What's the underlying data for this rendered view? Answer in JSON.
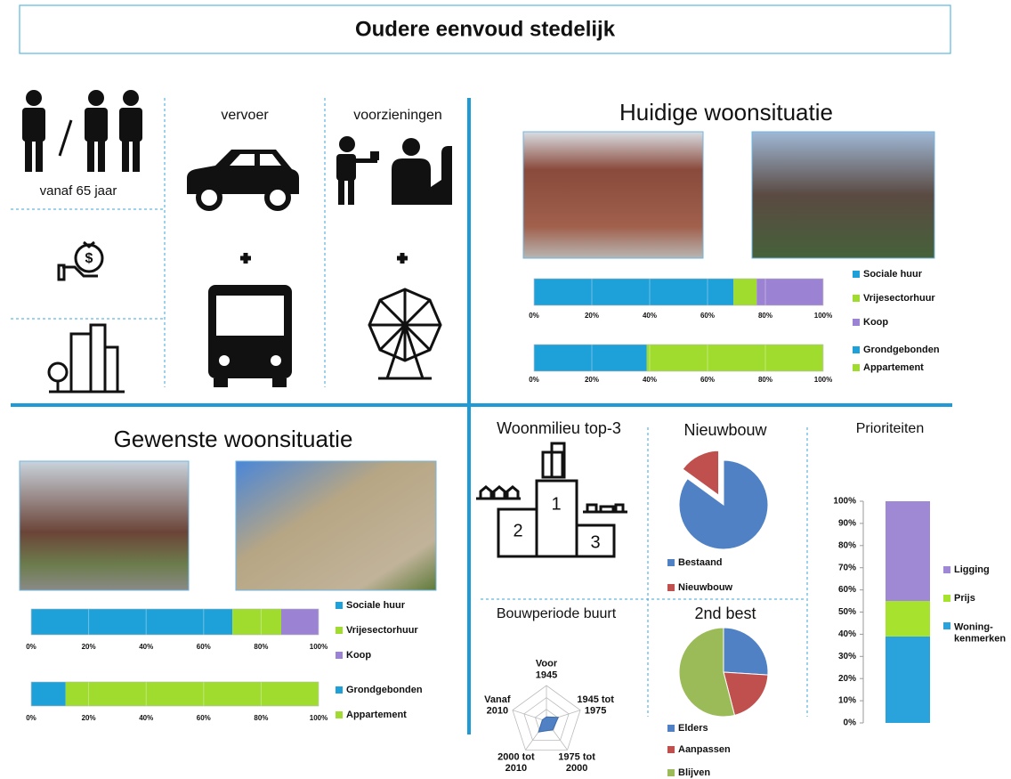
{
  "title": "Oudere eenvoud stedelijk",
  "profile": {
    "age": "vanaf 65 jaar",
    "transport": "vervoer",
    "facilities": "voorzieningen"
  },
  "sections": {
    "current": "Huidige woonsituatie",
    "desired": "Gewenste woonsituatie",
    "environment": "Woonmilieu top-3"
  },
  "podium": [
    "1",
    "2",
    "3"
  ],
  "chart_data": [
    {
      "type": "stacked-bar",
      "grid": true,
      "legend": "right",
      "xlim": [
        0,
        100
      ],
      "xticks": [
        {
          "value": 0,
          "label": "0%"
        },
        {
          "value": 20,
          "label": "20%"
        },
        {
          "value": 40,
          "label": "40%"
        },
        {
          "value": 60,
          "label": "60%"
        },
        {
          "value": 80,
          "label": "80%"
        },
        {
          "value": 100,
          "label": "100%"
        }
      ],
      "series": [
        {
          "name": "Sociale huur",
          "color": "#1ea0d9",
          "values": [
            69
          ]
        },
        {
          "name": "Vrijesectorhuur",
          "color": "#9fdc2e",
          "values": [
            8
          ]
        },
        {
          "name": "Koop",
          "color": "#9b82d3",
          "values": [
            23
          ]
        }
      ]
    },
    {
      "type": "stacked-bar",
      "grid": true,
      "legend": "right",
      "xlim": [
        0,
        100
      ],
      "xticks": [
        {
          "value": 0,
          "label": "0%"
        },
        {
          "value": 20,
          "label": "20%"
        },
        {
          "value": 40,
          "label": "40%"
        },
        {
          "value": 60,
          "label": "60%"
        },
        {
          "value": 80,
          "label": "80%"
        },
        {
          "value": 100,
          "label": "100%"
        }
      ],
      "series": [
        {
          "name": "Grondgebonden",
          "color": "#1ea0d9",
          "values": [
            39
          ]
        },
        {
          "name": "Appartement",
          "color": "#9fdc2e",
          "values": [
            61
          ]
        }
      ]
    },
    {
      "type": "stacked-bar",
      "grid": true,
      "legend": "right",
      "xlim": [
        0,
        100
      ],
      "xticks": [
        {
          "value": 0,
          "label": "0%"
        },
        {
          "value": 20,
          "label": "20%"
        },
        {
          "value": 40,
          "label": "40%"
        },
        {
          "value": 60,
          "label": "60%"
        },
        {
          "value": 80,
          "label": "80%"
        },
        {
          "value": 100,
          "label": "100%"
        }
      ],
      "series": [
        {
          "name": "Sociale huur",
          "color": "#1ea0d9",
          "values": [
            70
          ]
        },
        {
          "name": "Vrijesectorhuur",
          "color": "#9fdc2e",
          "values": [
            17
          ]
        },
        {
          "name": "Koop",
          "color": "#9b82d3",
          "values": [
            13
          ]
        }
      ]
    },
    {
      "type": "stacked-bar",
      "grid": true,
      "legend": "right",
      "xlim": [
        0,
        100
      ],
      "xticks": [
        {
          "value": 0,
          "label": "0%"
        },
        {
          "value": 20,
          "label": "20%"
        },
        {
          "value": 40,
          "label": "40%"
        },
        {
          "value": 60,
          "label": "60%"
        },
        {
          "value": 80,
          "label": "80%"
        },
        {
          "value": 100,
          "label": "100%"
        }
      ],
      "series": [
        {
          "name": "Grondgebonden",
          "color": "#1ea0d9",
          "values": [
            12
          ]
        },
        {
          "name": "Appartement",
          "color": "#9fdc2e",
          "values": [
            88
          ]
        }
      ]
    },
    {
      "type": "pie",
      "title": "Nieuwbouw",
      "legend": "bottom",
      "categories": [
        "Bestaand",
        "Nieuwbouw"
      ],
      "values": [
        85,
        15
      ],
      "colors": [
        "#4f81c4",
        "#c0504d"
      ],
      "explode": [
        false,
        true
      ]
    },
    {
      "type": "radar",
      "title": "Bouwperiode buurt",
      "rlim": [
        0,
        1
      ],
      "color": "#4f81c4",
      "categories": [
        "Voor\n1945",
        "1945 tot\n1975",
        "1975 tot\n2000",
        "2000 tot\n2010",
        "Vanaf\n2010"
      ],
      "values": [
        0.12,
        0.35,
        0.3,
        0.38,
        0.12
      ]
    },
    {
      "type": "pie",
      "title": "2nd best",
      "legend": "bottom",
      "categories": [
        "Elders",
        "Aanpassen",
        "Blijven"
      ],
      "values": [
        26,
        20,
        54
      ],
      "colors": [
        "#4f81c4",
        "#c0504d",
        "#9bbb59"
      ],
      "explode": [
        false,
        false,
        false
      ]
    },
    {
      "type": "stacked-column",
      "title": "Prioriteiten",
      "legend": "right",
      "ylim": [
        0,
        100
      ],
      "yticks": [
        {
          "value": 0,
          "label": "0%"
        },
        {
          "value": 10,
          "label": "10%"
        },
        {
          "value": 20,
          "label": "20%"
        },
        {
          "value": 30,
          "label": "30%"
        },
        {
          "value": 40,
          "label": "40%"
        },
        {
          "value": 50,
          "label": "50%"
        },
        {
          "value": 60,
          "label": "60%"
        },
        {
          "value": 70,
          "label": "70%"
        },
        {
          "value": 80,
          "label": "80%"
        },
        {
          "value": 90,
          "label": "90%"
        },
        {
          "value": 100,
          "label": "100%"
        }
      ],
      "series": [
        {
          "name": "Woning-\nkenmerken",
          "color": "#2aa3dc",
          "values": [
            39
          ]
        },
        {
          "name": "Prijs",
          "color": "#a6e22e",
          "values": [
            16
          ]
        },
        {
          "name": "Ligging",
          "color": "#9f88d4",
          "values": [
            45
          ]
        }
      ]
    }
  ]
}
